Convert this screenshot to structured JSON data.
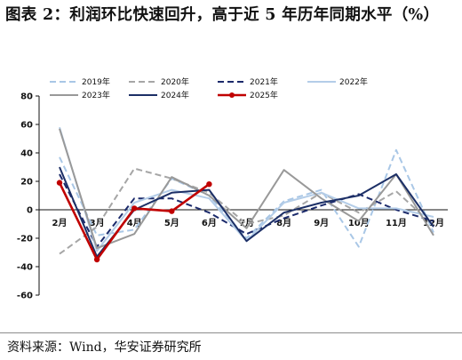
{
  "title": "图表 2：利润环比快速回升，高于近 5 年历年同期水平（%）",
  "source": "资料来源：Wind，华安证券研究所",
  "chart_data": {
    "type": "line",
    "title": "",
    "xlabel": "",
    "ylabel": "",
    "categories": [
      "2月",
      "3月",
      "4月",
      "5月",
      "6月",
      "7月",
      "8月",
      "9月",
      "10月",
      "11月",
      "12月"
    ],
    "ylim": [
      -60,
      80
    ],
    "yticks": [
      -60,
      -40,
      -20,
      0,
      20,
      40,
      60,
      80
    ],
    "grid": false,
    "legend_position": "top",
    "series": [
      {
        "name": "2019年",
        "color": "#a9c7e6",
        "dash": "dash",
        "values": [
          37,
          -18,
          -14,
          22,
          10,
          -20,
          6,
          14,
          -26,
          42,
          -16
        ]
      },
      {
        "name": "2020年",
        "color": "#a6a6a6",
        "dash": "dash",
        "values": [
          -31,
          -12,
          29,
          22,
          12,
          -10,
          -4,
          12,
          -2,
          13,
          -11
        ]
      },
      {
        "name": "2021年",
        "color": "#1b2a6b",
        "dash": "dash",
        "values": [
          25,
          -26,
          8,
          8,
          -2,
          -17,
          -6,
          3,
          11,
          0,
          -8
        ]
      },
      {
        "name": "2022年",
        "color": "#b4cde8",
        "dash": "solid",
        "values": [
          58,
          -29,
          5,
          14,
          8,
          -22,
          5,
          12,
          1,
          1,
          -5
        ]
      },
      {
        "name": "2023年",
        "color": "#999999",
        "dash": "solid",
        "values": [
          57,
          -27,
          -17,
          23,
          10,
          -13,
          28,
          8,
          -8,
          25,
          -18
        ]
      },
      {
        "name": "2024年",
        "color": "#1c2f66",
        "dash": "solid",
        "values": [
          30,
          -33,
          0,
          12,
          14,
          -22,
          -2,
          5,
          10,
          25,
          -12
        ]
      },
      {
        "name": "2025年",
        "color": "#c00000",
        "dash": "solid",
        "markers": true,
        "values": [
          19,
          -35,
          1,
          -1,
          18,
          null,
          null,
          null,
          null,
          null,
          null
        ]
      }
    ]
  }
}
